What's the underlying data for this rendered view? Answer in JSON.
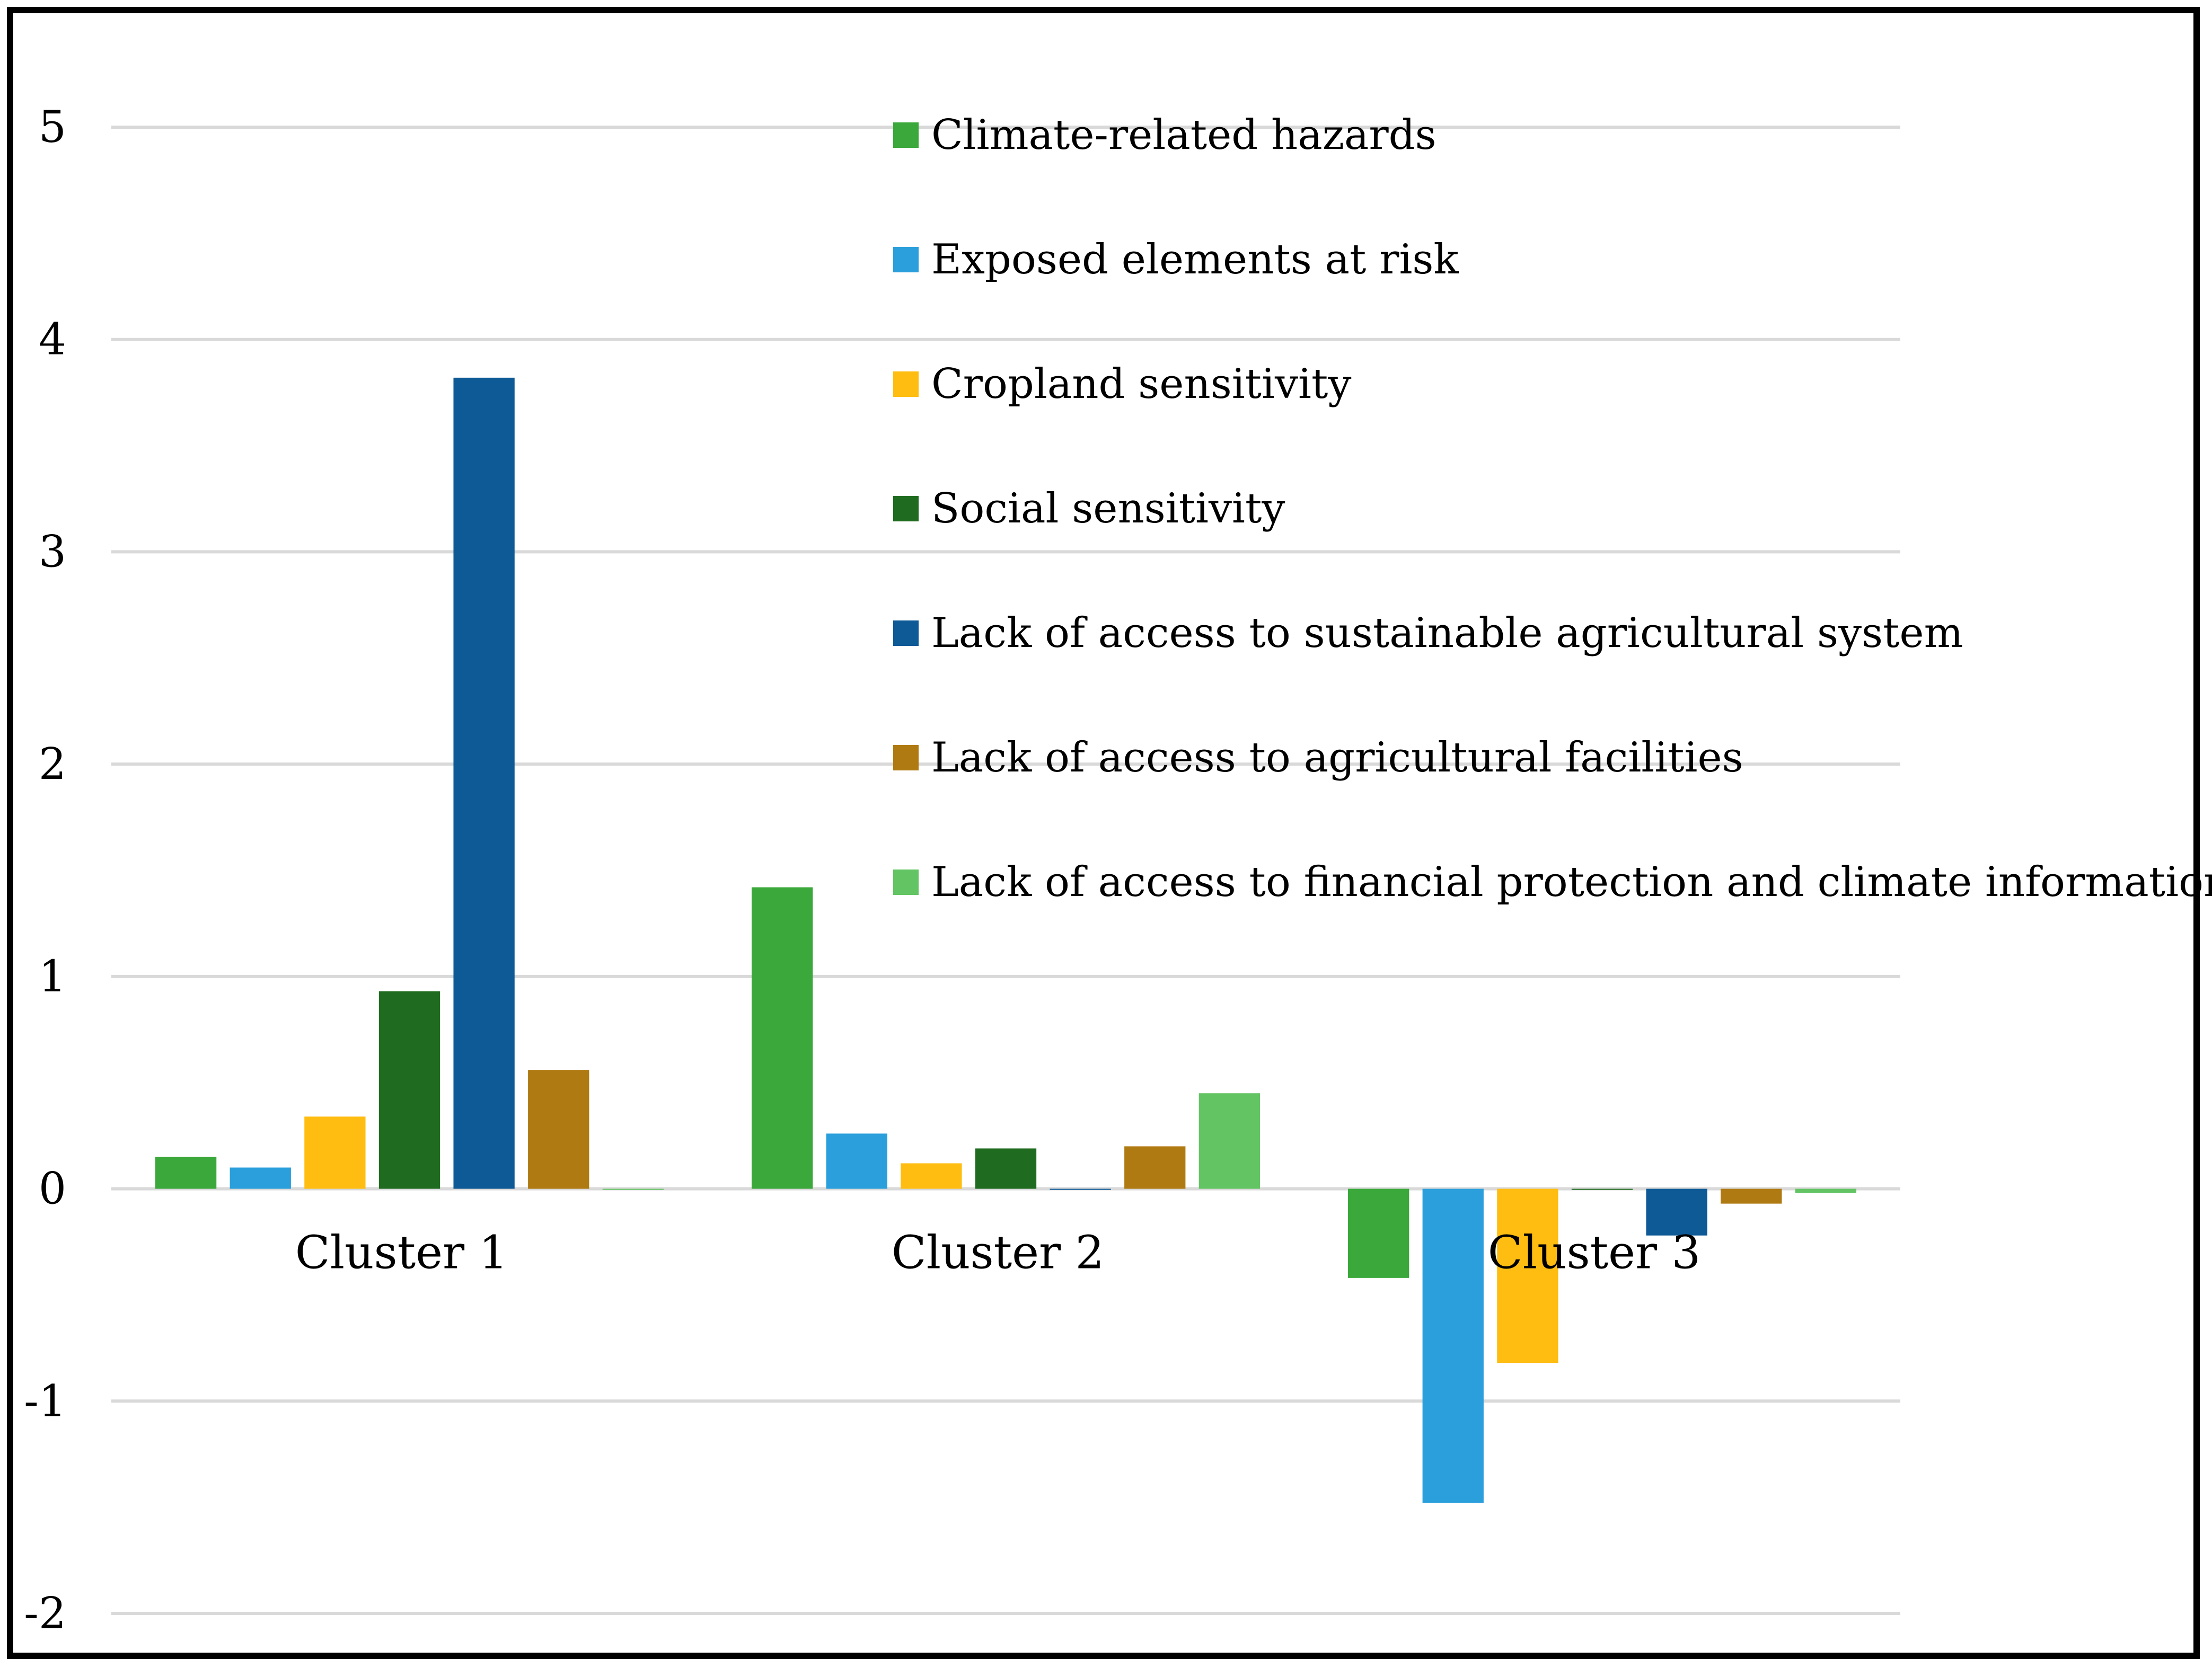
{
  "chart_data": {
    "type": "bar",
    "title": "",
    "xlabel": "",
    "ylabel": "",
    "ylim": [
      -2,
      5
    ],
    "yticks": [
      -2,
      -1,
      0,
      1,
      2,
      3,
      4,
      5
    ],
    "grid": true,
    "legend_position": "top-right",
    "categories": [
      "Cluster 1",
      "Cluster 2",
      "Cluster 3"
    ],
    "series": [
      {
        "name": "Climate-related hazards",
        "color": "#3aa83a",
        "values": [
          0.15,
          1.42,
          -0.42
        ]
      },
      {
        "name": "Exposed elements at risk",
        "color": "#2b9fdc",
        "values": [
          0.1,
          0.26,
          -1.48
        ]
      },
      {
        "name": "Cropland sensitivity",
        "color": "#ffbd11",
        "values": [
          0.34,
          0.12,
          -0.82
        ]
      },
      {
        "name": "Social sensitivity",
        "color": "#1f6b1f",
        "values": [
          0.93,
          0.19,
          0.0
        ]
      },
      {
        "name": "Lack of access to sustainable agricultural system",
        "color": "#0e5a96",
        "values": [
          3.82,
          0.0,
          -0.22
        ]
      },
      {
        "name": "Lack of access to agricultural facilities",
        "color": "#b07a12",
        "values": [
          0.56,
          0.2,
          -0.07
        ]
      },
      {
        "name": "Lack of access to financial protection  and climate information",
        "color": "#63c463",
        "values": [
          0.0,
          0.45,
          -0.02
        ]
      }
    ]
  }
}
